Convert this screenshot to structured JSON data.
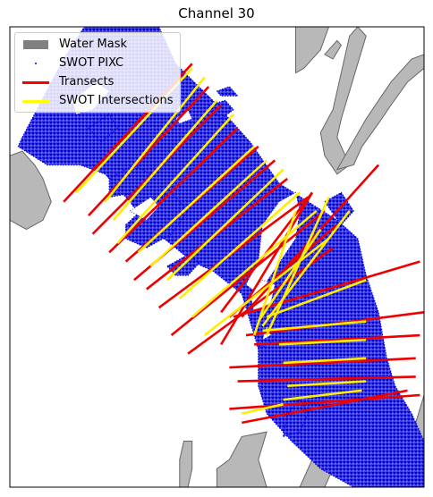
{
  "chart_data": {
    "type": "scatter",
    "title": "Channel 30",
    "xlabel": "",
    "ylabel": "",
    "grid": false,
    "legend_position": "top-left",
    "legend": [
      {
        "label": "Water Mask",
        "kind": "patch",
        "color": "#808080"
      },
      {
        "label": "SWOT PIXC",
        "kind": "point",
        "color": "#0000ff"
      },
      {
        "label": "Transects",
        "kind": "line",
        "color": "#ff0000"
      },
      {
        "label": "SWOT Intersections",
        "kind": "line",
        "color": "#ffff00"
      }
    ],
    "colors": {
      "water_mask_fill": "#b8b8b8",
      "water_mask_edge": "#666666",
      "pixc": "#0000ff",
      "transect": "#ee0000",
      "intersection": "#ffee00",
      "inner_line": "#1c8fa0"
    },
    "domain": {
      "x": [
        0,
        100
      ],
      "y": [
        0,
        100
      ]
    },
    "water_mask_polygons": [
      [
        [
          0,
          72
        ],
        [
          3,
          73
        ],
        [
          6,
          70
        ],
        [
          8,
          67
        ],
        [
          10,
          62
        ],
        [
          8,
          58
        ],
        [
          4,
          56
        ],
        [
          0,
          58
        ]
      ],
      [
        [
          69,
          100
        ],
        [
          77,
          100
        ],
        [
          75,
          95
        ],
        [
          71,
          91
        ],
        [
          69,
          90
        ]
      ],
      [
        [
          76,
          94
        ],
        [
          79,
          97
        ],
        [
          80,
          96
        ],
        [
          78,
          93
        ]
      ],
      [
        [
          75,
          77
        ],
        [
          78,
          82
        ],
        [
          80,
          90
        ],
        [
          82,
          98
        ],
        [
          84,
          100
        ],
        [
          86,
          98
        ],
        [
          84,
          92
        ],
        [
          82,
          86
        ],
        [
          80,
          80
        ],
        [
          79,
          76
        ],
        [
          82,
          70
        ],
        [
          79,
          68
        ],
        [
          76,
          72
        ]
      ],
      [
        [
          79,
          69
        ],
        [
          86,
          80
        ],
        [
          92,
          88
        ],
        [
          97,
          93
        ],
        [
          100,
          94
        ],
        [
          100,
          91
        ],
        [
          96,
          88
        ],
        [
          92,
          83
        ],
        [
          89,
          79
        ],
        [
          85,
          74
        ],
        [
          83,
          70
        ]
      ],
      [
        [
          41,
          0
        ],
        [
          43,
          0
        ],
        [
          44,
          4
        ],
        [
          44,
          8
        ],
        [
          44,
          10
        ],
        [
          42,
          10
        ],
        [
          41,
          6
        ]
      ],
      [
        [
          50,
          0
        ],
        [
          62,
          0
        ],
        [
          60,
          6
        ],
        [
          62,
          12
        ],
        [
          56,
          11
        ],
        [
          53,
          6
        ],
        [
          50,
          4
        ]
      ],
      [
        [
          86,
          0
        ],
        [
          100,
          0
        ],
        [
          100,
          20
        ],
        [
          98,
          14
        ],
        [
          96,
          10
        ],
        [
          92,
          6
        ],
        [
          88,
          3
        ]
      ],
      [
        [
          70,
          0
        ],
        [
          76,
          0
        ],
        [
          78,
          4
        ],
        [
          76,
          8
        ],
        [
          73,
          6
        ]
      ]
    ],
    "pixc_regions": [
      [
        [
          3,
          76
        ],
        [
          13,
          93
        ],
        [
          18,
          100
        ],
        [
          36,
          100
        ],
        [
          40,
          92
        ],
        [
          49,
          84
        ],
        [
          58,
          75
        ],
        [
          65,
          66
        ],
        [
          72,
          62
        ],
        [
          79,
          58
        ],
        [
          84,
          54
        ],
        [
          86,
          46
        ],
        [
          89,
          38
        ],
        [
          91,
          28
        ],
        [
          93,
          22
        ],
        [
          97,
          16
        ],
        [
          100,
          10
        ],
        [
          100,
          0
        ],
        [
          83,
          0
        ],
        [
          75,
          4
        ],
        [
          68,
          10
        ],
        [
          62,
          16
        ],
        [
          60,
          22
        ],
        [
          60,
          30
        ],
        [
          56,
          42
        ],
        [
          49,
          47
        ],
        [
          44,
          49
        ],
        [
          40,
          52
        ],
        [
          33,
          57
        ],
        [
          29,
          62
        ],
        [
          23,
          68
        ],
        [
          17,
          70
        ],
        [
          9,
          70
        ],
        [
          2,
          74
        ]
      ],
      [
        [
          28,
          57
        ],
        [
          34,
          62
        ],
        [
          39,
          64
        ],
        [
          43,
          60
        ],
        [
          39,
          55
        ],
        [
          33,
          52
        ],
        [
          28,
          54
        ]
      ],
      [
        [
          24,
          67
        ],
        [
          30,
          70
        ],
        [
          34,
          68
        ],
        [
          30,
          64
        ],
        [
          24,
          63
        ]
      ],
      [
        [
          31,
          90
        ],
        [
          34,
          93
        ],
        [
          37,
          91
        ],
        [
          40,
          90
        ],
        [
          36,
          87
        ],
        [
          32,
          87
        ]
      ],
      [
        [
          48,
          83
        ],
        [
          52,
          84
        ],
        [
          54,
          82
        ],
        [
          51,
          80
        ]
      ],
      [
        [
          50,
          86
        ],
        [
          53,
          87
        ],
        [
          55,
          85
        ],
        [
          51,
          85
        ]
      ],
      [
        [
          38,
          48
        ],
        [
          42,
          50
        ],
        [
          46,
          49
        ],
        [
          43,
          46
        ],
        [
          40,
          46
        ]
      ],
      [
        [
          66,
          11
        ],
        [
          70,
          12
        ],
        [
          72,
          16
        ],
        [
          70,
          19
        ],
        [
          67,
          16
        ]
      ],
      [
        [
          60,
          30
        ],
        [
          63,
          35
        ],
        [
          66,
          38
        ],
        [
          64,
          32
        ]
      ],
      [
        [
          76,
          62
        ],
        [
          80,
          64
        ],
        [
          83,
          60
        ],
        [
          80,
          57
        ]
      ],
      [
        [
          19,
          78
        ],
        [
          24,
          81
        ],
        [
          26,
          78
        ],
        [
          22,
          75
        ]
      ]
    ],
    "holes": [
      [
        [
          57,
          44
        ],
        [
          60,
          49
        ],
        [
          61,
          57
        ],
        [
          65,
          62
        ],
        [
          69,
          64
        ],
        [
          70,
          60
        ],
        [
          69,
          54
        ],
        [
          66,
          50
        ],
        [
          63,
          46
        ],
        [
          60,
          42
        ]
      ],
      [
        [
          59,
          38
        ],
        [
          63,
          40
        ],
        [
          64,
          44
        ],
        [
          61,
          45
        ],
        [
          58,
          42
        ]
      ],
      [
        [
          61,
          32
        ],
        [
          63,
          33
        ],
        [
          62,
          35
        ]
      ],
      [
        [
          15,
          84
        ],
        [
          21,
          88
        ],
        [
          24,
          86
        ],
        [
          20,
          82
        ],
        [
          16,
          81
        ]
      ],
      [
        [
          29,
          60
        ],
        [
          34,
          63
        ],
        [
          36,
          61
        ],
        [
          33,
          58
        ]
      ],
      [
        [
          40,
          80
        ],
        [
          43,
          82
        ],
        [
          44,
          80
        ],
        [
          41,
          79
        ]
      ]
    ],
    "transects": [
      [
        [
          13,
          62
        ],
        [
          44,
          92
        ]
      ],
      [
        [
          19,
          59
        ],
        [
          48,
          87
        ]
      ],
      [
        [
          20,
          55
        ],
        [
          51,
          83
        ]
      ],
      [
        [
          24,
          51
        ],
        [
          55,
          78
        ]
      ],
      [
        [
          28,
          49
        ],
        [
          60,
          74
        ]
      ],
      [
        [
          30,
          45
        ],
        [
          64,
          71
        ]
      ],
      [
        [
          33,
          43
        ],
        [
          67,
          67
        ]
      ],
      [
        [
          36,
          39
        ],
        [
          72,
          63
        ]
      ],
      [
        [
          39,
          33
        ],
        [
          76,
          60
        ]
      ],
      [
        [
          43,
          29
        ],
        [
          78,
          52
        ]
      ],
      [
        [
          51,
          38
        ],
        [
          73,
          64
        ]
      ],
      [
        [
          53,
          37
        ],
        [
          79,
          57
        ]
      ],
      [
        [
          56,
          37
        ],
        [
          89,
          70
        ]
      ],
      [
        [
          51,
          31
        ],
        [
          73,
          64
        ]
      ],
      [
        [
          54,
          37
        ],
        [
          99,
          49
        ]
      ],
      [
        [
          57,
          33
        ],
        [
          100,
          38
        ]
      ],
      [
        [
          59,
          31
        ],
        [
          99,
          33
        ]
      ],
      [
        [
          53,
          26
        ],
        [
          98,
          28
        ]
      ],
      [
        [
          55,
          23
        ],
        [
          98,
          24
        ]
      ],
      [
        [
          53,
          17
        ],
        [
          99,
          20
        ]
      ],
      [
        [
          56,
          14
        ],
        [
          96,
          21
        ]
      ]
    ],
    "intersections": [
      [
        [
          16,
          64
        ],
        [
          44,
          91
        ]
      ],
      [
        [
          23,
          62
        ],
        [
          47,
          89
        ]
      ],
      [
        [
          25,
          58
        ],
        [
          50,
          84
        ]
      ],
      [
        [
          26,
          53
        ],
        [
          54,
          81
        ]
      ],
      [
        [
          31,
          51
        ],
        [
          59,
          74
        ]
      ],
      [
        [
          34,
          48
        ],
        [
          62,
          71
        ]
      ],
      [
        [
          38,
          45
        ],
        [
          66,
          69
        ]
      ],
      [
        [
          41,
          41
        ],
        [
          70,
          64
        ]
      ],
      [
        [
          44,
          37
        ],
        [
          74,
          60
        ]
      ],
      [
        [
          47,
          33
        ],
        [
          77,
          54
        ]
      ],
      [
        [
          59,
          33
        ],
        [
          69,
          60
        ]
      ],
      [
        [
          62,
          33
        ],
        [
          77,
          63
        ]
      ],
      [
        [
          61,
          35
        ],
        [
          82,
          60
        ]
      ],
      [
        [
          60,
          36
        ],
        [
          75,
          56
        ]
      ],
      [
        [
          62,
          37
        ],
        [
          86,
          45
        ]
      ],
      [
        [
          61,
          34
        ],
        [
          86,
          36
        ]
      ],
      [
        [
          65,
          31
        ],
        [
          86,
          32
        ]
      ],
      [
        [
          66,
          27
        ],
        [
          86,
          28
        ]
      ],
      [
        [
          67,
          22
        ],
        [
          86,
          23
        ]
      ],
      [
        [
          66,
          19
        ],
        [
          85,
          21
        ]
      ],
      [
        [
          56,
          16
        ],
        [
          66,
          18
        ]
      ]
    ]
  }
}
